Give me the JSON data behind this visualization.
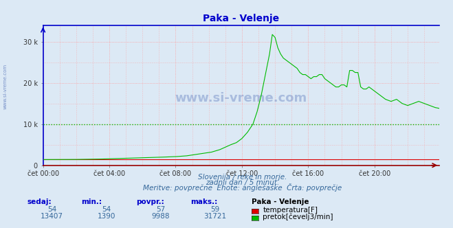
{
  "title": "Paka - Velenje",
  "title_color": "#0000cc",
  "bg_color": "#dce9f5",
  "plot_bg_color": "#dce9f5",
  "grid_color": "#ff9999",
  "avg_line_color": "#00bb00",
  "avg_line_value": 9988,
  "x_labels": [
    "čet 00:00",
    "čet 04:00",
    "čet 08:00",
    "čet 12:00",
    "čet 16:00",
    "čet 20:00"
  ],
  "x_ticks": [
    0,
    48,
    96,
    144,
    192,
    240
  ],
  "y_ticks": [
    0,
    10000,
    20000,
    30000
  ],
  "y_tick_labels": [
    "0",
    "10 k",
    "20 k",
    "30 k"
  ],
  "ylim": [
    0,
    34000
  ],
  "xlim": [
    0,
    287
  ],
  "temp_color": "#dd0000",
  "flow_color": "#00bb00",
  "watermark_color": "#3355aa",
  "subtitle1": "Slovenija / reke in morje.",
  "subtitle2": "zadnji dan / 5 minut.",
  "subtitle3": "Meritve: povprečne  Enote: anglešaške  Črta: povprečje",
  "legend_title": "Paka - Velenje",
  "legend_items": [
    {
      "label": "temperatura[F]",
      "color": "#dd0000"
    },
    {
      "label": "pretok[čevelj3/min]",
      "color": "#00bb00"
    }
  ],
  "stats_headers": [
    "sedaj:",
    "min.:",
    "povpr.:",
    "maks.:"
  ],
  "stats_temp": [
    54,
    54,
    57,
    59
  ],
  "stats_flow": [
    13407,
    1390,
    9988,
    31721
  ],
  "watermark": "www.si-vreme.com",
  "side_label": "www.si-vreme.com",
  "n_points": 288,
  "left_spine_color": "#0000cc",
  "top_spine_color": "#0000cc",
  "bottom_spine_color": "#990000",
  "right_spine_color": "#aaaaaa"
}
